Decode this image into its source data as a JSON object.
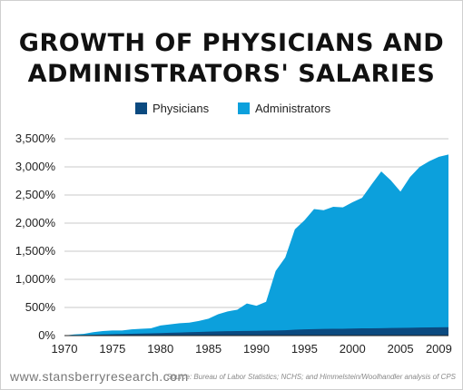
{
  "chart_data": {
    "type": "area",
    "title_lines": [
      "GROWTH OF PHYSICIANS AND",
      "ADMINISTRATORS' SALARIES"
    ],
    "xlabel": "",
    "ylabel": "",
    "x": [
      1970,
      1971,
      1972,
      1973,
      1974,
      1975,
      1976,
      1977,
      1978,
      1979,
      1980,
      1981,
      1982,
      1983,
      1984,
      1985,
      1986,
      1987,
      1988,
      1989,
      1990,
      1991,
      1992,
      1993,
      1994,
      1995,
      1996,
      1997,
      1998,
      1999,
      2000,
      2001,
      2002,
      2003,
      2004,
      2005,
      2006,
      2007,
      2008,
      2009,
      2010
    ],
    "series": [
      {
        "name": "Administrators",
        "color": "#0ca0dc",
        "values": [
          0,
          20,
          30,
          60,
          80,
          90,
          90,
          110,
          120,
          130,
          180,
          200,
          220,
          230,
          260,
          300,
          380,
          430,
          460,
          570,
          530,
          600,
          1150,
          1390,
          1890,
          2050,
          2250,
          2230,
          2290,
          2280,
          2370,
          2450,
          2690,
          2920,
          2760,
          2560,
          2820,
          3000,
          3100,
          3180,
          3220
        ]
      },
      {
        "name": "Physicians",
        "color": "#0b4a80",
        "values": [
          0,
          5,
          10,
          15,
          20,
          25,
          28,
          32,
          36,
          40,
          45,
          50,
          55,
          60,
          65,
          70,
          75,
          78,
          80,
          82,
          85,
          88,
          90,
          95,
          105,
          110,
          115,
          118,
          120,
          122,
          125,
          128,
          130,
          132,
          135,
          138,
          140,
          143,
          146,
          148,
          150
        ]
      }
    ],
    "y_ticks": [
      "0%",
      "500%",
      "1,000%",
      "1,500%",
      "2,000%",
      "2,500%",
      "3,000%",
      "3,500%"
    ],
    "x_ticks": [
      "1970",
      "1975",
      "1980",
      "1985",
      "1990",
      "1995",
      "2000",
      "2005",
      "2009"
    ],
    "x_tick_values": [
      1970,
      1975,
      1980,
      1985,
      1990,
      1995,
      2000,
      2005,
      2009
    ],
    "ylim": [
      0,
      3500
    ],
    "xlim": [
      1970,
      2010
    ],
    "grid": true,
    "legend_placement": "top-center"
  },
  "legend": {
    "physicians_label": "Physicians",
    "administrators_label": "Administrators"
  },
  "footer": {
    "website": "www.stansberryresearch.com",
    "source": "Source: Bureau of Labor Statistics; NCHS; and Himmelstein/Woolhandler analysis of CPS"
  }
}
